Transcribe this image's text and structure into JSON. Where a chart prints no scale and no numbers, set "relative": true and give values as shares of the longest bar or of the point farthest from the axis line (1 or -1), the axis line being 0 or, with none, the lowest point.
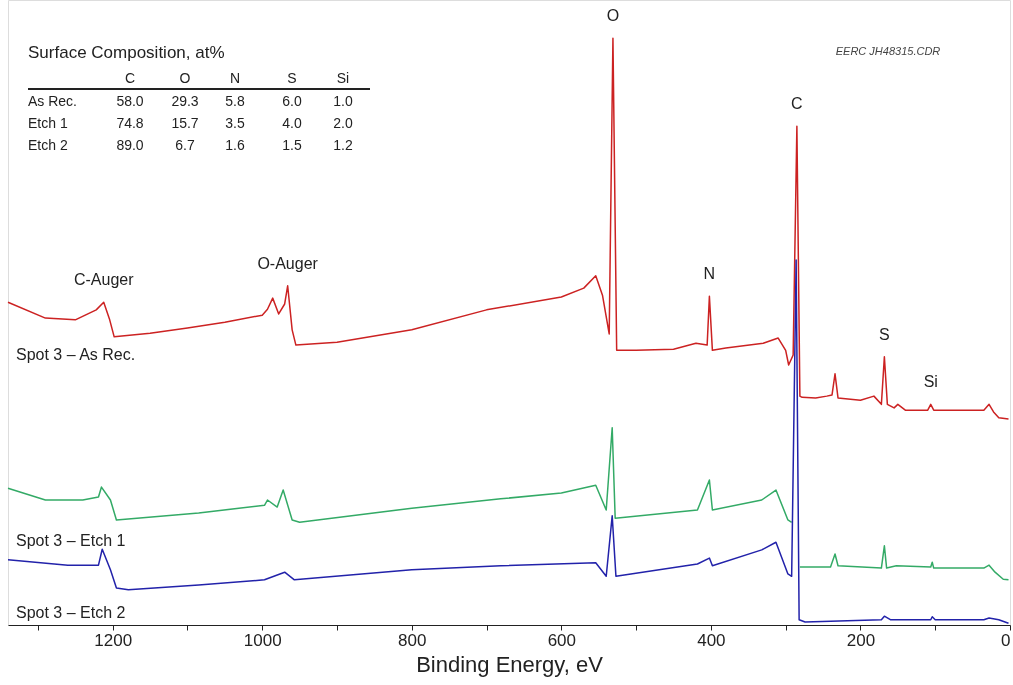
{
  "chart_data": {
    "type": "line",
    "relative": true,
    "xlabel": "Binding Energy, eV",
    "xlim": [
      1340,
      0
    ],
    "xticks": [
      {
        "value": 1300,
        "label": null
      },
      1200,
      {
        "value": 1100,
        "label": null
      },
      1000,
      {
        "value": 900,
        "label": null
      },
      800,
      {
        "value": 700,
        "label": null
      },
      600,
      {
        "value": 500,
        "label": null
      },
      400,
      {
        "value": 300,
        "label": null
      },
      200,
      {
        "value": 100,
        "label": null
      },
      0
    ],
    "series": [
      {
        "name": "Spot 3 – As Rec.",
        "color": "#cc2222",
        "x": [
          1340,
          1290,
          1250,
          1222,
          1212,
          1204,
          1198,
          1150,
          1100,
          1050,
          1000,
          993,
          986,
          978,
          970,
          966,
          960,
          955,
          900,
          800,
          700,
          600,
          570,
          554,
          545,
          536,
          531,
          526,
          500,
          450,
          420,
          405,
          402,
          398,
          380,
          330,
          310,
          300,
          296,
          290,
          285,
          281,
          278,
          260,
          245,
          238,
          234,
          230,
          200,
          182,
          172,
          168,
          164,
          155,
          150,
          140,
          110,
          106,
          102,
          50,
          35,
          28,
          22,
          15,
          2
        ],
        "values": [
          0.55,
          0.523,
          0.52,
          0.537,
          0.55,
          0.52,
          0.491,
          0.497,
          0.506,
          0.516,
          0.528,
          0.538,
          0.557,
          0.53,
          0.547,
          0.578,
          0.503,
          0.477,
          0.482,
          0.503,
          0.537,
          0.559,
          0.574,
          0.595,
          0.562,
          0.496,
          1.0,
          0.468,
          0.468,
          0.47,
          0.48,
          0.477,
          0.56,
          0.468,
          0.472,
          0.48,
          0.489,
          0.468,
          0.443,
          0.46,
          0.85,
          0.39,
          0.388,
          0.387,
          0.39,
          0.392,
          0.428,
          0.387,
          0.383,
          0.39,
          0.376,
          0.457,
          0.376,
          0.37,
          0.376,
          0.366,
          0.366,
          0.376,
          0.366,
          0.366,
          0.366,
          0.376,
          0.363,
          0.353,
          0.351
        ]
      },
      {
        "name": "Spot 3 – Etch 1",
        "color": "#33aa66",
        "x": [
          1340,
          1290,
          1240,
          1219,
          1215,
          1203,
          1195,
          1085,
          997,
          993,
          980,
          972,
          960,
          950,
          800,
          681,
          600,
          554,
          540,
          532,
          528,
          418,
          402,
          398,
          332,
          313,
          297,
          292,
          286,
          281,
          240,
          234,
          230,
          172,
          168,
          165,
          152,
          106,
          104,
          102,
          35,
          28,
          20,
          9,
          2
        ],
        "values": [
          0.233,
          0.213,
          0.213,
          0.218,
          0.235,
          0.213,
          0.179,
          0.191,
          0.204,
          0.213,
          0.201,
          0.23,
          0.179,
          0.175,
          0.199,
          0.215,
          0.225,
          0.238,
          0.196,
          0.336,
          0.182,
          0.196,
          0.247,
          0.196,
          0.213,
          0.23,
          0.179,
          0.175,
          null,
          0.099,
          0.099,
          0.121,
          0.101,
          0.097,
          0.135,
          0.097,
          0.101,
          0.099,
          0.107,
          0.097,
          0.097,
          0.102,
          0.09,
          0.078,
          0.077
        ]
      },
      {
        "name": "Spot 3 – Etch 2",
        "color": "#2222aa",
        "x": [
          1340,
          1260,
          1219,
          1214,
          1203,
          1195,
          1179,
          1085,
          997,
          970,
          957,
          800,
          681,
          554,
          540,
          532,
          527,
          418,
          402,
          398,
          332,
          313,
          297,
          292,
          286,
          282,
          274,
          172,
          168,
          160,
          106,
          104,
          100,
          35,
          28,
          15,
          2
        ],
        "values": [
          0.111,
          0.102,
          0.102,
          0.129,
          0.094,
          0.063,
          0.06,
          0.068,
          0.077,
          0.09,
          0.077,
          0.094,
          0.101,
          0.106,
          0.083,
          0.186,
          0.083,
          0.104,
          0.114,
          0.101,
          0.128,
          0.141,
          0.087,
          0.083,
          0.622,
          0.009,
          0.005,
          0.009,
          0.015,
          0.009,
          0.009,
          0.014,
          0.009,
          0.009,
          0.012,
          0.009,
          0.003
        ]
      }
    ],
    "annotations": [
      "Surface Composition, at%",
      "C",
      "O",
      "N",
      "S",
      "Si",
      "As Rec.",
      "58.0",
      "29.3",
      "5.8",
      "6.0",
      "1.0",
      "Etch 1",
      "74.8",
      "15.7",
      "3.5",
      "4.0",
      "2.0",
      "Etch 2",
      "89.0",
      "6.7",
      "1.6",
      "1.5",
      "1.2",
      "EERC JH48315.CDR",
      {
        "text": "C-Auger",
        "x": 1212,
        "y": 0.55
      },
      {
        "text": "O-Auger",
        "x": 966,
        "y": 0.578
      },
      {
        "text": "O",
        "x": 531,
        "y": 1.0
      },
      {
        "text": "C",
        "x": 285,
        "y": 0.85
      },
      {
        "text": "N",
        "x": 402,
        "y": 0.56
      },
      {
        "text": "S",
        "x": 168,
        "y": 0.457
      },
      {
        "text": "Si",
        "x": 106,
        "y": 0.376
      }
    ]
  }
}
